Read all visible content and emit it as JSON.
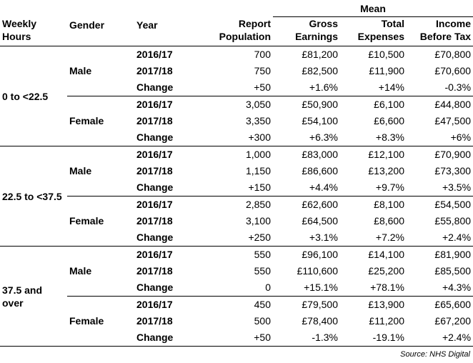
{
  "headers": {
    "weekly_hours": "Weekly Hours",
    "gender": "Gender",
    "year": "Year",
    "report_population": "Report Population",
    "mean": "Mean",
    "gross_earnings": "Gross Earnings",
    "total_expenses": "Total Expenses",
    "income_before_tax": "Income Before Tax"
  },
  "groups": [
    {
      "hours": "0 to <22.5",
      "genders": [
        {
          "gender": "Male",
          "rows": [
            {
              "year": "2016/17",
              "pop": "700",
              "gross": "£81,200",
              "exp": "£10,500",
              "inc": "£70,800"
            },
            {
              "year": "2017/18",
              "pop": "750",
              "gross": "£82,500",
              "exp": "£11,900",
              "inc": "£70,600"
            },
            {
              "year": "Change",
              "pop": "+50",
              "gross": "+1.6%",
              "exp": "+14%",
              "inc": "-0.3%"
            }
          ]
        },
        {
          "gender": "Female",
          "rows": [
            {
              "year": "2016/17",
              "pop": "3,050",
              "gross": "£50,900",
              "exp": "£6,100",
              "inc": "£44,800"
            },
            {
              "year": "2017/18",
              "pop": "3,350",
              "gross": "£54,100",
              "exp": "£6,600",
              "inc": "£47,500"
            },
            {
              "year": "Change",
              "pop": "+300",
              "gross": "+6.3%",
              "exp": "+8.3%",
              "inc": "+6%"
            }
          ]
        }
      ]
    },
    {
      "hours": "22.5 to <37.5",
      "genders": [
        {
          "gender": "Male",
          "rows": [
            {
              "year": "2016/17",
              "pop": "1,000",
              "gross": "£83,000",
              "exp": "£12,100",
              "inc": "£70,900"
            },
            {
              "year": "2017/18",
              "pop": "1,150",
              "gross": "£86,600",
              "exp": "£13,200",
              "inc": "£73,300"
            },
            {
              "year": "Change",
              "pop": "+150",
              "gross": "+4.4%",
              "exp": "+9.7%",
              "inc": "+3.5%"
            }
          ]
        },
        {
          "gender": "Female",
          "rows": [
            {
              "year": "2016/17",
              "pop": "2,850",
              "gross": "£62,600",
              "exp": "£8,100",
              "inc": "£54,500"
            },
            {
              "year": "2017/18",
              "pop": "3,100",
              "gross": "£64,500",
              "exp": "£8,600",
              "inc": "£55,800"
            },
            {
              "year": "Change",
              "pop": "+250",
              "gross": "+3.1%",
              "exp": "+7.2%",
              "inc": "+2.4%"
            }
          ]
        }
      ]
    },
    {
      "hours": "37.5 and over",
      "genders": [
        {
          "gender": "Male",
          "rows": [
            {
              "year": "2016/17",
              "pop": "550",
              "gross": "£96,100",
              "exp": "£14,100",
              "inc": "£81,900"
            },
            {
              "year": "2017/18",
              "pop": "550",
              "gross": "£110,600",
              "exp": "£25,200",
              "inc": "£85,500"
            },
            {
              "year": "Change",
              "pop": "0",
              "gross": "+15.1%",
              "exp": "+78.1%",
              "inc": "+4.3%"
            }
          ]
        },
        {
          "gender": "Female",
          "rows": [
            {
              "year": "2016/17",
              "pop": "450",
              "gross": "£79,500",
              "exp": "£13,900",
              "inc": "£65,600"
            },
            {
              "year": "2017/18",
              "pop": "500",
              "gross": "£78,400",
              "exp": "£11,200",
              "inc": "£67,200"
            },
            {
              "year": "Change",
              "pop": "+50",
              "gross": "-1.3%",
              "exp": "-19.1%",
              "inc": "+2.4%"
            }
          ]
        }
      ]
    }
  ],
  "source": "Source: NHS Digital"
}
